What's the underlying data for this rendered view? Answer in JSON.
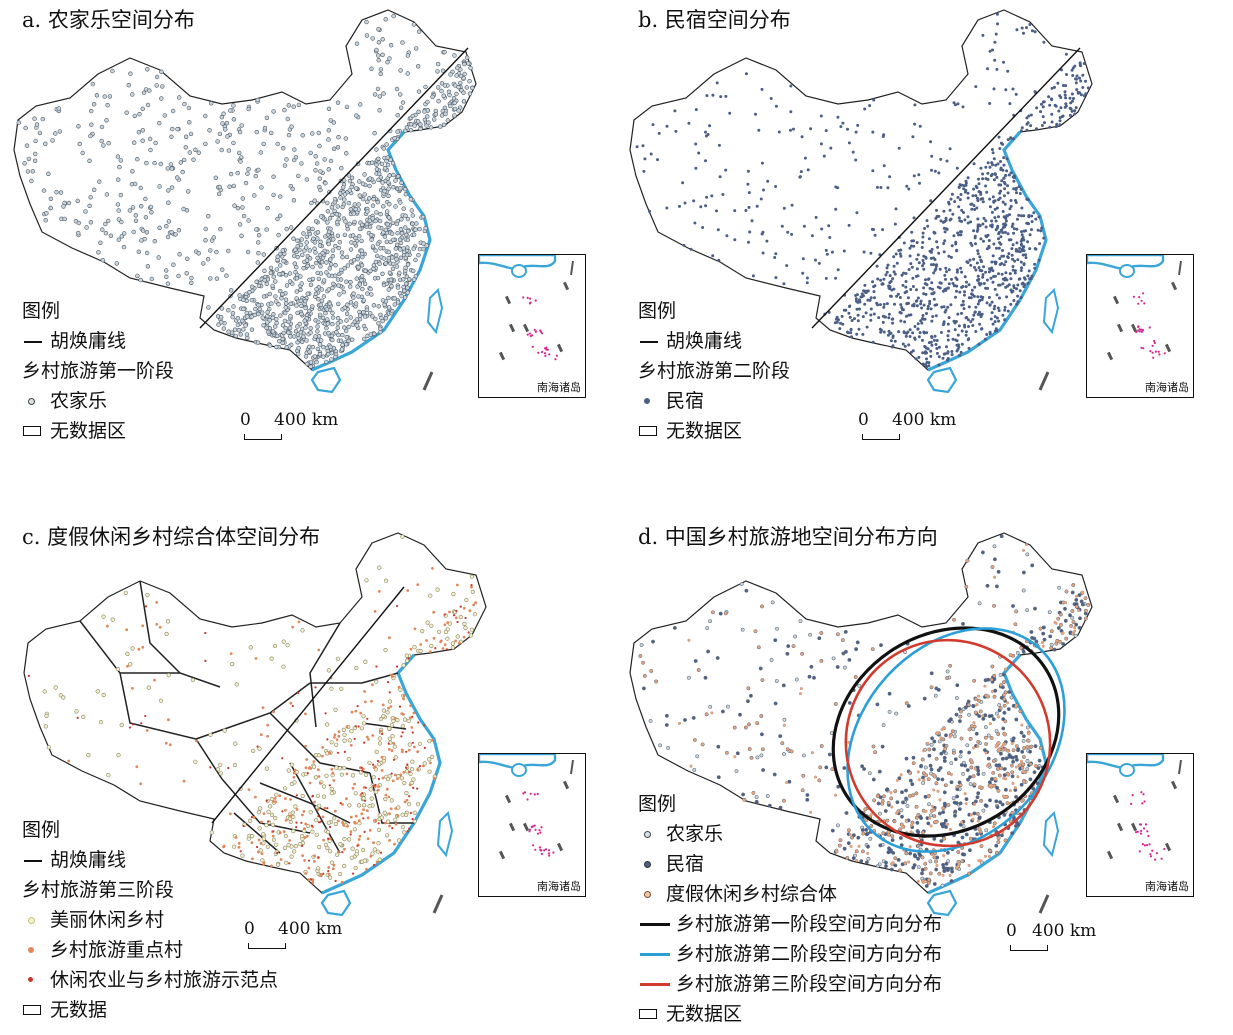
{
  "panels": [
    {
      "title": "a. 农家乐空间分布",
      "legend_title": "图例",
      "legend_items": [
        "胡焕庸线",
        "乡村旅游第一阶段",
        "农家乐",
        "无数据区"
      ],
      "scale_zero": "0",
      "scale_label": "400 km",
      "inset_label": "南海诸岛"
    },
    {
      "title": "b. 民宿空间分布",
      "legend_title": "图例",
      "legend_items": [
        "胡焕庸线",
        "乡村旅游第二阶段",
        "民宿",
        "无数据区"
      ],
      "scale_zero": "0",
      "scale_label": "400 km",
      "inset_label": "南海诸岛"
    },
    {
      "title": "c. 度假休闲乡村综合体空间分布",
      "legend_title": "图例",
      "legend_items": [
        "胡焕庸线",
        "乡村旅游第三阶段",
        "美丽休闲乡村",
        "乡村旅游重点村",
        "休闲农业与乡村旅游示范点",
        "无数据"
      ],
      "scale_zero": "0",
      "scale_label": "400 km",
      "inset_label": "南海诸岛"
    },
    {
      "title": "d. 中国乡村旅游地空间分布方向",
      "legend_title": "图例",
      "legend_items": [
        "农家乐",
        "民宿",
        "度假休闲乡村综合体",
        "乡村旅游第一阶段空间方向分布",
        "乡村旅游第二阶段空间方向分布",
        "乡村旅游第三阶段空间方向分布",
        "无数据区"
      ],
      "scale_zero": "0",
      "scale_label": "400 km",
      "inset_label": "南海诸岛"
    }
  ],
  "colors": {
    "coast": "#3aa6d8",
    "farmstay": "#6f8a9c",
    "homestay": "#4a5e86",
    "resort_village": "#c9c27a",
    "key_village": "#e0885a",
    "demo_site": "#c8372b",
    "islands": "#d9278f",
    "stage1_ellipse": "#111111",
    "stage2_ellipse": "#2b9fd6",
    "stage3_ellipse": "#d23a2e"
  }
}
